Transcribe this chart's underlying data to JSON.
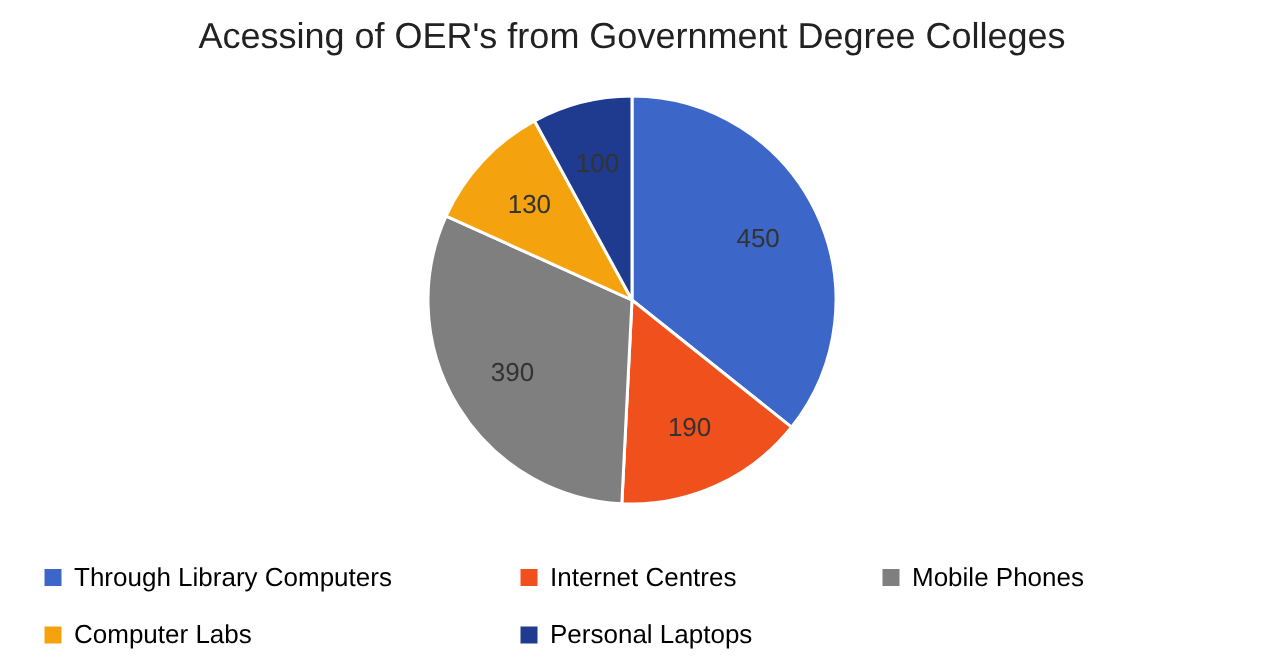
{
  "chart_data": {
    "type": "pie",
    "title": "Acessing of OER's from Government Degree Colleges",
    "categories": [
      "Through Library Computers",
      "Internet Centres",
      "Mobile Phones",
      "Computer Labs",
      "Personal Laptops"
    ],
    "values": [
      450,
      190,
      390,
      130,
      100
    ],
    "colors": [
      "#3c67c8",
      "#f0501c",
      "#7f7f7f",
      "#f5a20f",
      "#1f3b8f"
    ],
    "data_labels": true,
    "legend": "bottom"
  }
}
